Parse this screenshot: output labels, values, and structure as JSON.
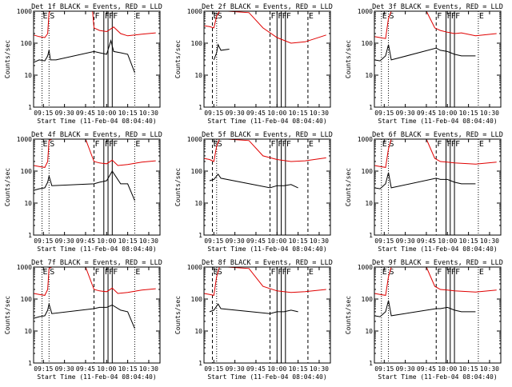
{
  "figure": {
    "start_time_label": "Start Time (11-Feb-04 08:04:40)",
    "ylabel": "Counts/sec",
    "y_ticks": [
      "1",
      "10",
      "100",
      "1000"
    ],
    "x_ticks": [
      "09:15",
      "09:30",
      "09:45",
      "10:00",
      "10:15",
      "10:30"
    ],
    "event_color": "#000000",
    "lld_color": "#e00000"
  },
  "chart_data": [
    {
      "type": "line",
      "title": "Det 1f BLACK = Events, RED = LLD",
      "y_scale": "log",
      "ylim": [
        1,
        1000
      ],
      "markers": [
        {
          "label": "E",
          "x": "09:14",
          "style": "dotted"
        },
        {
          "label": "S",
          "x": "09:19",
          "style": "dotted"
        },
        {
          "label": "F",
          "x": "09:51",
          "style": "dashed"
        },
        {
          "label": "F",
          "x": "09:58",
          "style": "solid"
        },
        {
          "label": "F",
          "x": "10:01",
          "style": "solid"
        },
        {
          "label": "F",
          "x": "10:04",
          "style": "solid"
        },
        {
          "label": "E",
          "x": "10:20",
          "style": "dotted"
        }
      ],
      "series": [
        {
          "x": [
            "09:08",
            "09:12",
            "09:16",
            "09:18",
            "09:19",
            "09:20",
            "09:21",
            "09:45",
            "09:50",
            "09:51",
            "09:55",
            "10:00",
            "10:05",
            "10:10",
            "10:15",
            "10:25",
            "10:35"
          ],
          "values": [
            180,
            160,
            150,
            200,
            900,
            1000,
            1000,
            1000,
            1000,
            300,
            250,
            230,
            320,
            200,
            170,
            190,
            210
          ]
        },
        {
          "x": [
            "09:08",
            "09:12",
            "09:16",
            "09:18",
            "09:19",
            "09:20",
            "09:24",
            "09:51",
            "09:55",
            "10:00",
            "10:03",
            "10:05",
            "10:10",
            "10:15",
            "10:20"
          ],
          "values": [
            25,
            30,
            28,
            40,
            60,
            30,
            30,
            55,
            50,
            45,
            120,
            55,
            50,
            45,
            12
          ]
        }
      ]
    },
    {
      "type": "line",
      "title": "Det 2f BLACK = Events, RED = LLD",
      "y_scale": "log",
      "ylim": [
        1,
        1000
      ],
      "markers": [
        {
          "label": "E",
          "x": "09:14",
          "style": "dashed"
        },
        {
          "label": "S",
          "x": "09:17",
          "style": "dotted"
        },
        {
          "label": "F",
          "x": "09:55",
          "style": "dashed"
        },
        {
          "label": "F",
          "x": "10:00",
          "style": "solid"
        },
        {
          "label": "F",
          "x": "10:03",
          "style": "solid"
        },
        {
          "label": "F",
          "x": "10:06",
          "style": "solid"
        },
        {
          "label": "E",
          "x": "10:22",
          "style": "dashed"
        }
      ],
      "series": [
        {
          "x": [
            "09:08",
            "09:12",
            "09:15",
            "09:17",
            "09:19",
            "09:25",
            "09:40",
            "09:50",
            "10:00",
            "10:10",
            "10:20",
            "10:35"
          ],
          "values": [
            350,
            330,
            300,
            700,
            1000,
            1000,
            900,
            300,
            150,
            100,
            110,
            180
          ]
        },
        {
          "x": [
            "09:15",
            "09:17",
            "09:18",
            "09:20",
            "09:26"
          ],
          "values": [
            30,
            50,
            90,
            60,
            65
          ]
        }
      ]
    },
    {
      "type": "line",
      "title": "Det 3f BLACK = Events, RED = LLD",
      "y_scale": "log",
      "ylim": [
        1,
        1000
      ],
      "markers": [
        {
          "label": "E",
          "x": "09:13",
          "style": "dotted"
        },
        {
          "label": "S",
          "x": "09:18",
          "style": "dotted"
        },
        {
          "label": "F",
          "x": "09:52",
          "style": "dashed"
        },
        {
          "label": "F",
          "x": "09:59",
          "style": "solid"
        },
        {
          "label": "F",
          "x": "10:02",
          "style": "solid"
        },
        {
          "label": "F",
          "x": "10:05",
          "style": "solid"
        },
        {
          "label": "E",
          "x": "10:22",
          "style": "dotted"
        }
      ],
      "series": [
        {
          "x": [
            "09:08",
            "09:12",
            "09:16",
            "09:18",
            "09:20",
            "09:45",
            "09:51",
            "09:55",
            "10:00",
            "10:05",
            "10:10",
            "10:20",
            "10:35"
          ],
          "values": [
            160,
            150,
            140,
            600,
            1000,
            1000,
            300,
            250,
            220,
            200,
            210,
            170,
            200
          ]
        },
        {
          "x": [
            "09:08",
            "09:12",
            "09:16",
            "09:18",
            "09:20",
            "09:52",
            "09:55",
            "10:00",
            "10:05",
            "10:10",
            "10:20"
          ],
          "values": [
            30,
            28,
            40,
            90,
            30,
            70,
            60,
            55,
            45,
            40,
            40
          ]
        }
      ]
    },
    {
      "type": "line",
      "title": "Det 4f BLACK = Events, RED = LLD",
      "y_scale": "log",
      "ylim": [
        1,
        1000
      ],
      "markers": [
        {
          "label": "E",
          "x": "09:14",
          "style": "dotted"
        },
        {
          "label": "S",
          "x": "09:19",
          "style": "dotted"
        },
        {
          "label": "F",
          "x": "09:51",
          "style": "dashed"
        },
        {
          "label": "F",
          "x": "09:58",
          "style": "solid"
        },
        {
          "label": "F",
          "x": "10:01",
          "style": "solid"
        },
        {
          "label": "F",
          "x": "10:04",
          "style": "solid"
        },
        {
          "label": "E",
          "x": "10:20",
          "style": "dotted"
        }
      ],
      "series": [
        {
          "x": [
            "09:08",
            "09:12",
            "09:16",
            "09:18",
            "09:19",
            "09:21",
            "09:45",
            "09:51",
            "09:55",
            "10:00",
            "10:04",
            "10:08",
            "10:15",
            "10:25",
            "10:35"
          ],
          "values": [
            150,
            140,
            130,
            200,
            900,
            1000,
            1000,
            200,
            180,
            170,
            220,
            150,
            160,
            190,
            210
          ]
        },
        {
          "x": [
            "09:08",
            "09:12",
            "09:16",
            "09:18",
            "09:19",
            "09:21",
            "09:51",
            "09:55",
            "10:00",
            "10:04",
            "10:10",
            "10:15",
            "10:20"
          ],
          "values": [
            25,
            28,
            30,
            45,
            70,
            35,
            40,
            45,
            50,
            100,
            40,
            40,
            12
          ]
        }
      ]
    },
    {
      "type": "line",
      "title": "Det 5f BLACK = Events, RED = LLD",
      "y_scale": "log",
      "ylim": [
        1,
        1000
      ],
      "markers": [
        {
          "label": "E",
          "x": "09:14",
          "style": "dashed"
        },
        {
          "label": "S",
          "x": "09:17",
          "style": "dotted"
        },
        {
          "label": "F",
          "x": "09:55",
          "style": "dashed"
        },
        {
          "label": "F",
          "x": "10:00",
          "style": "solid"
        },
        {
          "label": "F",
          "x": "10:03",
          "style": "solid"
        },
        {
          "label": "F",
          "x": "10:06",
          "style": "solid"
        },
        {
          "label": "E",
          "x": "10:22",
          "style": "dashed"
        }
      ],
      "series": [
        {
          "x": [
            "09:08",
            "09:12",
            "09:15",
            "09:17",
            "09:19",
            "09:25",
            "09:40",
            "09:50",
            "10:00",
            "10:10",
            "10:20",
            "10:35"
          ],
          "values": [
            250,
            230,
            200,
            600,
            1000,
            1000,
            900,
            300,
            230,
            200,
            210,
            260
          ]
        },
        {
          "x": [
            "09:12",
            "09:15",
            "09:17",
            "09:18",
            "09:20",
            "09:55",
            "10:00",
            "10:05",
            "10:10",
            "10:15"
          ],
          "values": [
            50,
            55,
            70,
            80,
            60,
            30,
            35,
            35,
            38,
            30
          ]
        }
      ]
    },
    {
      "type": "line",
      "title": "Det 6f BLACK = Events, RED = LLD",
      "y_scale": "log",
      "ylim": [
        1,
        1000
      ],
      "markers": [
        {
          "label": "E",
          "x": "09:13",
          "style": "dotted"
        },
        {
          "label": "S",
          "x": "09:18",
          "style": "dotted"
        },
        {
          "label": "F",
          "x": "09:52",
          "style": "dashed"
        },
        {
          "label": "F",
          "x": "09:59",
          "style": "solid"
        },
        {
          "label": "F",
          "x": "10:02",
          "style": "solid"
        },
        {
          "label": "F",
          "x": "10:05",
          "style": "solid"
        },
        {
          "label": "E",
          "x": "10:22",
          "style": "dotted"
        }
      ],
      "series": [
        {
          "x": [
            "09:08",
            "09:12",
            "09:16",
            "09:18",
            "09:20",
            "09:45",
            "09:51",
            "09:55",
            "10:00",
            "10:05",
            "10:10",
            "10:20",
            "10:35"
          ],
          "values": [
            150,
            140,
            130,
            500,
            1000,
            1000,
            250,
            200,
            190,
            180,
            175,
            165,
            190
          ]
        },
        {
          "x": [
            "09:08",
            "09:12",
            "09:16",
            "09:18",
            "09:20",
            "09:52",
            "09:55",
            "10:00",
            "10:05",
            "10:10",
            "10:20"
          ],
          "values": [
            30,
            28,
            40,
            90,
            30,
            60,
            55,
            55,
            45,
            40,
            40
          ]
        }
      ]
    },
    {
      "type": "line",
      "title": "Det 7f BLACK = Events, RED = LLD",
      "y_scale": "log",
      "ylim": [
        1,
        1000
      ],
      "markers": [
        {
          "label": "E",
          "x": "09:14",
          "style": "dotted"
        },
        {
          "label": "S",
          "x": "09:19",
          "style": "dotted"
        },
        {
          "label": "F",
          "x": "09:51",
          "style": "dashed"
        },
        {
          "label": "F",
          "x": "09:58",
          "style": "solid"
        },
        {
          "label": "F",
          "x": "10:01",
          "style": "solid"
        },
        {
          "label": "F",
          "x": "10:04",
          "style": "solid"
        },
        {
          "label": "E",
          "x": "10:20",
          "style": "dotted"
        }
      ],
      "series": [
        {
          "x": [
            "09:08",
            "09:12",
            "09:16",
            "09:18",
            "09:19",
            "09:21",
            "09:45",
            "09:51",
            "09:55",
            "10:00",
            "10:04",
            "10:08",
            "10:15",
            "10:25",
            "10:35"
          ],
          "values": [
            150,
            140,
            130,
            200,
            900,
            1000,
            1000,
            200,
            180,
            170,
            220,
            150,
            160,
            190,
            210
          ]
        },
        {
          "x": [
            "09:08",
            "09:12",
            "09:16",
            "09:18",
            "09:19",
            "09:21",
            "09:51",
            "09:55",
            "10:00",
            "10:04",
            "10:10",
            "10:15",
            "10:20"
          ],
          "values": [
            25,
            28,
            30,
            45,
            70,
            35,
            50,
            55,
            55,
            65,
            45,
            40,
            12
          ]
        }
      ]
    },
    {
      "type": "line",
      "title": "Det 8f BLACK = Events, RED = LLD",
      "y_scale": "log",
      "ylim": [
        1,
        1000
      ],
      "markers": [
        {
          "label": "E",
          "x": "09:14",
          "style": "dashed"
        },
        {
          "label": "S",
          "x": "09:17",
          "style": "dotted"
        },
        {
          "label": "F",
          "x": "09:55",
          "style": "dashed"
        },
        {
          "label": "F",
          "x": "10:00",
          "style": "solid"
        },
        {
          "label": "F",
          "x": "10:03",
          "style": "solid"
        },
        {
          "label": "F",
          "x": "10:06",
          "style": "solid"
        },
        {
          "label": "E",
          "x": "10:22",
          "style": "dashed"
        }
      ],
      "series": [
        {
          "x": [
            "09:08",
            "09:12",
            "09:15",
            "09:17",
            "09:19",
            "09:25",
            "09:40",
            "09:50",
            "10:00",
            "10:10",
            "10:20",
            "10:35"
          ],
          "values": [
            150,
            140,
            130,
            500,
            1000,
            1000,
            900,
            250,
            180,
            160,
            170,
            200
          ]
        },
        {
          "x": [
            "09:12",
            "09:15",
            "09:17",
            "09:18",
            "09:20",
            "09:55",
            "10:00",
            "10:05",
            "10:10",
            "10:15"
          ],
          "values": [
            40,
            45,
            60,
            70,
            50,
            35,
            40,
            40,
            45,
            40
          ]
        }
      ]
    },
    {
      "type": "line",
      "title": "Det 9f BLACK = Events, RED = LLD",
      "y_scale": "log",
      "ylim": [
        1,
        1000
      ],
      "markers": [
        {
          "label": "E",
          "x": "09:13",
          "style": "dotted"
        },
        {
          "label": "S",
          "x": "09:18",
          "style": "dotted"
        },
        {
          "label": "F",
          "x": "09:52",
          "style": "dashed"
        },
        {
          "label": "F",
          "x": "09:59",
          "style": "solid"
        },
        {
          "label": "F",
          "x": "10:02",
          "style": "solid"
        },
        {
          "label": "F",
          "x": "10:05",
          "style": "solid"
        },
        {
          "label": "E",
          "x": "10:22",
          "style": "dotted"
        }
      ],
      "series": [
        {
          "x": [
            "09:08",
            "09:12",
            "09:16",
            "09:18",
            "09:20",
            "09:45",
            "09:51",
            "09:55",
            "10:00",
            "10:05",
            "10:10",
            "10:20",
            "10:35"
          ],
          "values": [
            150,
            140,
            130,
            500,
            1000,
            1000,
            250,
            200,
            190,
            180,
            175,
            165,
            190
          ]
        },
        {
          "x": [
            "09:08",
            "09:12",
            "09:16",
            "09:18",
            "09:20",
            "09:52",
            "09:55",
            "10:00",
            "10:05",
            "10:10",
            "10:20"
          ],
          "values": [
            30,
            28,
            40,
            90,
            30,
            50,
            50,
            55,
            45,
            40,
            40
          ]
        }
      ]
    }
  ]
}
